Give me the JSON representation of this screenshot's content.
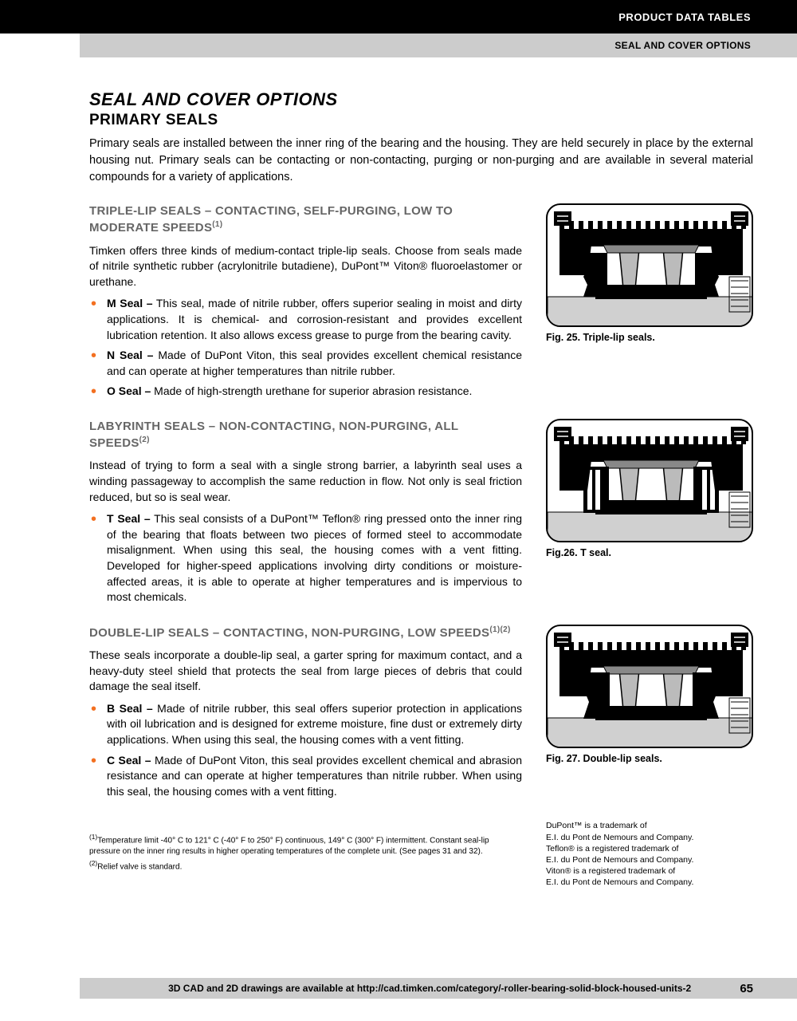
{
  "header": {
    "line1": "PRODUCT DATA TABLES",
    "line2": "SEAL AND COVER OPTIONS"
  },
  "colors": {
    "accent": "#f37021",
    "grayHeader": "#666666"
  },
  "title": "SEAL AND COVER OPTIONS",
  "subtitle": "PRIMARY SEALS",
  "intro": "Primary seals are installed between the inner ring of the bearing and the housing. They are held securely in place by the external housing nut. Primary seals can be contacting or non-contacting, purging or non-purging and are available in several material compounds for a variety of applications.",
  "sections": [
    {
      "heading": "TRIPLE-LIP SEALS – CONTACTING, SELF-PURGING, LOW TO MODERATE SPEEDS",
      "headingSup": "(1)",
      "text": "Timken offers three kinds of medium-contact triple-lip seals. Choose from seals made of nitrile synthetic rubber (acrylonitrile butadiene), DuPont™ Viton® fluoroelastomer or urethane.",
      "items": [
        {
          "bold": "M Seal –",
          "rest": " This seal, made of nitrile rubber, offers superior sealing in moist and dirty applications. It is chemical- and corrosion-resistant and provides excellent lubrication retention. It also allows excess grease to purge from the bearing cavity."
        },
        {
          "bold": "N Seal –",
          "rest": " Made of DuPont Viton, this seal provides excellent chemical resistance and can operate at higher temperatures than nitrile rubber."
        },
        {
          "bold": "O Seal –",
          "rest": " Made of high-strength urethane for superior abrasion resistance."
        }
      ],
      "figCaption": "Fig. 25. Triple-lip seals."
    },
    {
      "heading": "LABYRINTH SEALS – NON-CONTACTING, NON-PURGING, ALL SPEEDS",
      "headingSup": "(2)",
      "text": "Instead of trying to form a seal with a single strong barrier, a labyrinth seal uses a winding passageway to accomplish the same reduction in flow. Not only is seal friction reduced, but so is seal wear.",
      "items": [
        {
          "bold": "T Seal –",
          "rest": " This seal consists of a DuPont™ Teflon® ring pressed onto the inner ring of the bearing that floats between two pieces of formed steel to accommodate misalignment. When using this seal, the housing comes with a vent fitting. Developed for higher-speed applications involving dirty conditions or moisture-affected areas, it is able to operate at higher temperatures and is impervious to most chemicals."
        }
      ],
      "figCaption": "Fig.26. T seal."
    },
    {
      "heading": "DOUBLE-LIP SEALS – CONTACTING, NON-PURGING, LOW SPEEDS",
      "headingSup": "(1)(2)",
      "text": "These seals incorporate a double-lip seal, a garter spring for maximum contact, and a heavy-duty steel shield that protects the seal from large pieces of debris that could damage the seal itself.",
      "items": [
        {
          "bold": "B Seal –",
          "rest": " Made of nitrile rubber, this seal offers superior protection in applications with oil lubrication and is designed for extreme moisture, fine dust or extremely dirty applications. When using this seal, the housing comes with a vent fitting."
        },
        {
          "bold": "C Seal –",
          "rest": " Made of DuPont Viton, this seal provides excellent chemical and abrasion resistance and can operate at higher temperatures than nitrile rubber. When using this seal, the housing comes with a vent fitting."
        }
      ],
      "figCaption": "Fig. 27. Double-lip seals."
    }
  ],
  "footnotes": [
    "(1)Temperature limit -40° C to 121° C (-40° F to 250° F) continuous, 149° C (300° F) intermittent. Constant seal-lip pressure on the inner ring results in higher operating temperatures of the complete unit. (See pages 31 and 32).",
    "(2)Relief valve is standard."
  ],
  "trademarks": "DuPont™ is a trademark of\nE.I. du Pont de Nemours and Company.\nTeflon® is a registered trademark of\nE.I. du Pont de Nemours and Company.\nViton® is a registered trademark of\nE.I. du Pont de Nemours and Company.",
  "footer": {
    "text": "3D CAD and 2D drawings are available at http://cad.timken.com/category/-roller-bearing-solid-block-housed-units-2",
    "page": "65"
  }
}
